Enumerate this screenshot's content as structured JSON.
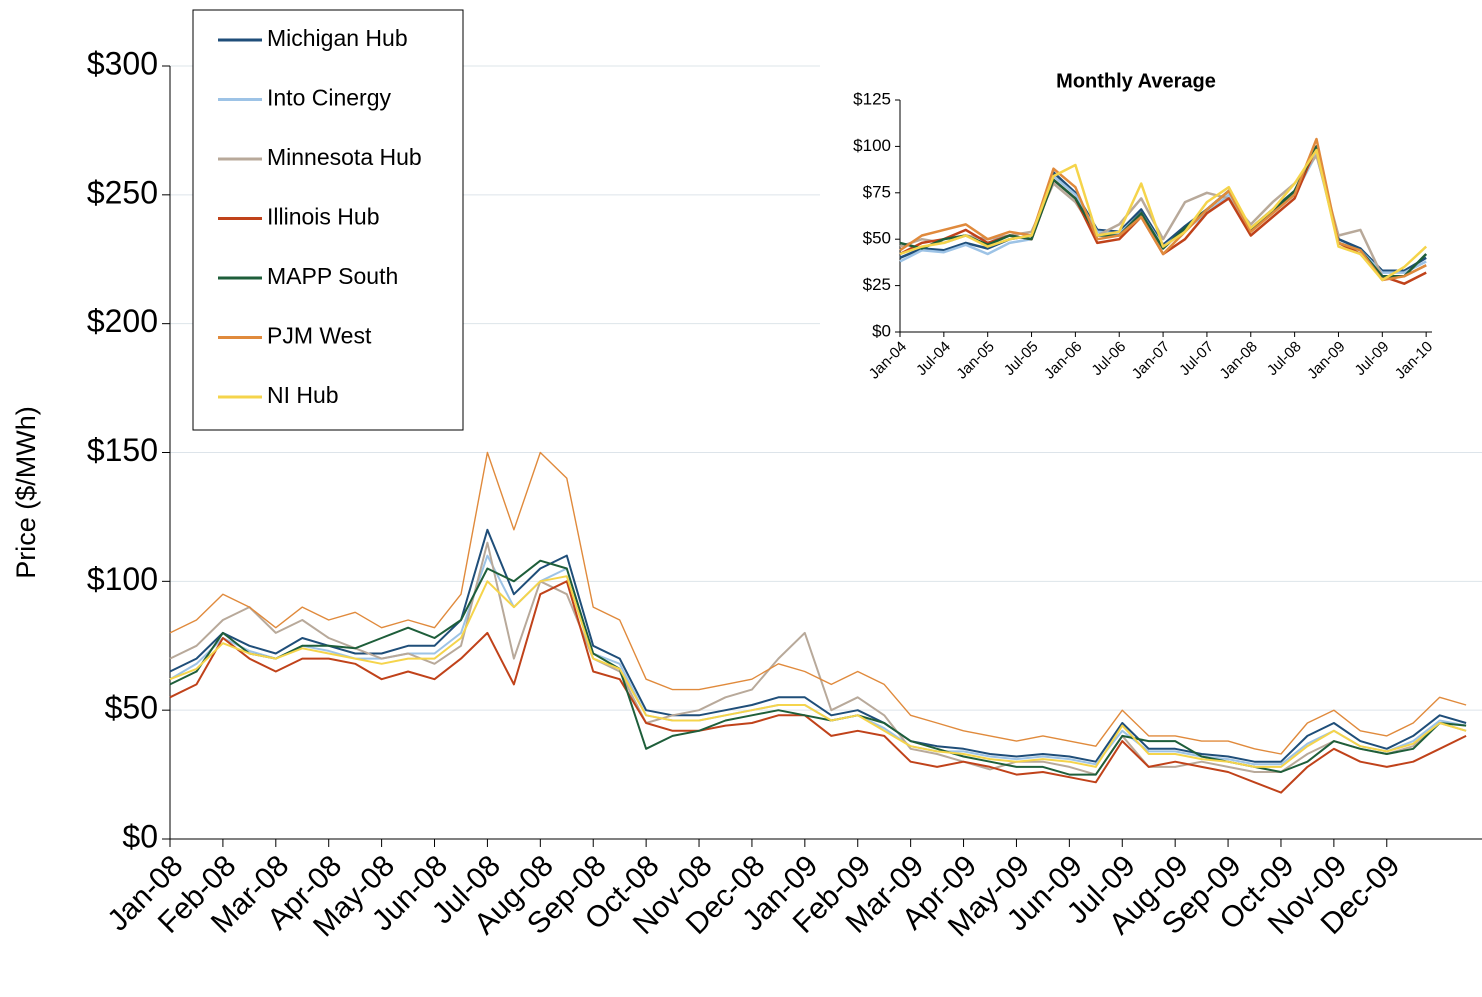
{
  "chart_data": [
    {
      "type": "line",
      "ylabel": "Price ($/MWh)",
      "legend": "upper-left",
      "grid": true,
      "xlim": [
        0,
        24.8
      ],
      "ylim": [
        0,
        300
      ],
      "xticks": [
        {
          "value": 0,
          "label": "Jan-08"
        },
        {
          "value": 1,
          "label": "Feb-08"
        },
        {
          "value": 2,
          "label": "Mar-08"
        },
        {
          "value": 3,
          "label": "Apr-08"
        },
        {
          "value": 4,
          "label": "May-08"
        },
        {
          "value": 5,
          "label": "Jun-08"
        },
        {
          "value": 6,
          "label": "Jul-08"
        },
        {
          "value": 7,
          "label": "Aug-08"
        },
        {
          "value": 8,
          "label": "Sep-08"
        },
        {
          "value": 9,
          "label": "Oct-08"
        },
        {
          "value": 10,
          "label": "Nov-08"
        },
        {
          "value": 11,
          "label": "Dec-08"
        },
        {
          "value": 12,
          "label": "Jan-09"
        },
        {
          "value": 13,
          "label": "Feb-09"
        },
        {
          "value": 14,
          "label": "Mar-09"
        },
        {
          "value": 15,
          "label": "Apr-09"
        },
        {
          "value": 16,
          "label": "May-09"
        },
        {
          "value": 17,
          "label": "Jun-09"
        },
        {
          "value": 18,
          "label": "Jul-09"
        },
        {
          "value": 19,
          "label": "Aug-09"
        },
        {
          "value": 20,
          "label": "Sep-09"
        },
        {
          "value": 21,
          "label": "Oct-09"
        },
        {
          "value": 22,
          "label": "Nov-09"
        },
        {
          "value": 23,
          "label": "Dec-09"
        }
      ],
      "yticks": [
        {
          "value": 0,
          "label": "$0"
        },
        {
          "value": 50,
          "label": "$50"
        },
        {
          "value": 100,
          "label": "$100"
        },
        {
          "value": 150,
          "label": "$150"
        },
        {
          "value": 200,
          "label": "$200"
        },
        {
          "value": 250,
          "label": "$250"
        },
        {
          "value": 300,
          "label": "$300"
        }
      ],
      "x": [
        0,
        0.5,
        1,
        1.5,
        2,
        2.5,
        3,
        3.5,
        4,
        4.5,
        5,
        5.5,
        6,
        6.5,
        7,
        7.5,
        8,
        8.5,
        9,
        9.5,
        10,
        10.5,
        11,
        11.5,
        12,
        12.5,
        13,
        13.5,
        14,
        14.5,
        15,
        15.5,
        16,
        16.5,
        17,
        17.5,
        18,
        18.5,
        19,
        19.5,
        20,
        20.5,
        21,
        21.5,
        22,
        22.5,
        23,
        23.5,
        24,
        24.5
      ],
      "series": [
        {
          "name": "Michigan Hub",
          "color": "#1f4e79",
          "values": [
            65,
            70,
            80,
            75,
            72,
            78,
            75,
            72,
            72,
            75,
            75,
            85,
            120,
            95,
            105,
            110,
            75,
            70,
            50,
            48,
            48,
            50,
            52,
            55,
            55,
            48,
            50,
            45,
            38,
            36,
            35,
            33,
            32,
            33,
            32,
            30,
            45,
            35,
            35,
            33,
            32,
            30,
            30,
            40,
            45,
            38,
            35,
            40,
            48,
            45
          ]
        },
        {
          "name": "Into Cinergy",
          "color": "#9dc3e6",
          "values": [
            62,
            68,
            78,
            73,
            70,
            75,
            73,
            70,
            70,
            72,
            72,
            80,
            110,
            90,
            100,
            105,
            72,
            68,
            48,
            46,
            46,
            48,
            50,
            52,
            52,
            46,
            48,
            43,
            36,
            34,
            34,
            32,
            31,
            32,
            31,
            29,
            42,
            34,
            34,
            32,
            31,
            29,
            29,
            37,
            42,
            36,
            34,
            38,
            46,
            44
          ]
        },
        {
          "name": "Minnesota Hub",
          "color": "#b8a99a",
          "values": [
            70,
            75,
            85,
            90,
            80,
            85,
            78,
            74,
            70,
            72,
            68,
            75,
            115,
            70,
            100,
            95,
            70,
            65,
            45,
            48,
            50,
            55,
            58,
            70,
            80,
            50,
            55,
            48,
            35,
            33,
            30,
            27,
            30,
            30,
            28,
            25,
            40,
            28,
            28,
            30,
            28,
            26,
            26,
            33,
            38,
            35,
            33,
            36,
            45,
            42
          ]
        },
        {
          "name": "Illinois Hub",
          "color": "#c0421a",
          "values": [
            55,
            60,
            78,
            70,
            65,
            70,
            70,
            68,
            62,
            65,
            62,
            70,
            80,
            60,
            95,
            100,
            65,
            62,
            45,
            42,
            42,
            44,
            45,
            48,
            48,
            40,
            42,
            40,
            30,
            28,
            30,
            28,
            25,
            26,
            24,
            22,
            38,
            28,
            30,
            28,
            26,
            22,
            18,
            28,
            35,
            30,
            28,
            30,
            35,
            40
          ]
        },
        {
          "name": "MAPP South",
          "color": "#1e5e3a",
          "values": [
            60,
            65,
            80,
            72,
            70,
            75,
            75,
            74,
            78,
            82,
            78,
            85,
            105,
            100,
            108,
            105,
            72,
            66,
            35,
            40,
            42,
            46,
            48,
            50,
            48,
            46,
            48,
            45,
            38,
            35,
            32,
            30,
            28,
            28,
            25,
            25,
            40,
            38,
            38,
            32,
            30,
            28,
            26,
            30,
            38,
            35,
            33,
            35,
            45,
            44
          ]
        },
        {
          "name": "PJM West",
          "color": "#e08a3c",
          "values": [
            80,
            85,
            95,
            90,
            82,
            90,
            85,
            88,
            82,
            85,
            82,
            95,
            150,
            120,
            150,
            140,
            90,
            85,
            62,
            58,
            58,
            60,
            62,
            68,
            65,
            60,
            65,
            60,
            48,
            45,
            42,
            40,
            38,
            40,
            38,
            36,
            50,
            40,
            40,
            38,
            38,
            35,
            33,
            45,
            50,
            42,
            40,
            45,
            55,
            52
          ]
        },
        {
          "name": "NI Hub",
          "color": "#f5d44b",
          "values": [
            62,
            66,
            76,
            72,
            70,
            74,
            72,
            70,
            68,
            70,
            70,
            78,
            100,
            90,
            100,
            102,
            70,
            66,
            48,
            46,
            46,
            48,
            50,
            52,
            52,
            46,
            48,
            42,
            36,
            34,
            33,
            31,
            30,
            31,
            30,
            28,
            44,
            33,
            33,
            31,
            30,
            28,
            28,
            36,
            42,
            36,
            34,
            37,
            45,
            42
          ]
        }
      ]
    },
    {
      "type": "line",
      "title": "Monthly Average",
      "grid": false,
      "xlim": [
        0,
        72.8
      ],
      "ylim": [
        0,
        125
      ],
      "xticks": [
        {
          "value": 0,
          "label": "Jan-04"
        },
        {
          "value": 6,
          "label": "Jul-04"
        },
        {
          "value": 12,
          "label": "Jan-05"
        },
        {
          "value": 18,
          "label": "Jul-05"
        },
        {
          "value": 24,
          "label": "Jan-06"
        },
        {
          "value": 30,
          "label": "Jul-06"
        },
        {
          "value": 36,
          "label": "Jan-07"
        },
        {
          "value": 42,
          "label": "Jul-07"
        },
        {
          "value": 48,
          "label": "Jan-08"
        },
        {
          "value": 54,
          "label": "Jul-08"
        },
        {
          "value": 60,
          "label": "Jan-09"
        },
        {
          "value": 66,
          "label": "Jul-09"
        },
        {
          "value": 72,
          "label": "Jan-10"
        }
      ],
      "yticks": [
        {
          "value": 0,
          "label": "$0"
        },
        {
          "value": 25,
          "label": "$25"
        },
        {
          "value": 50,
          "label": "$50"
        },
        {
          "value": 75,
          "label": "$75"
        },
        {
          "value": 100,
          "label": "$100"
        },
        {
          "value": 125,
          "label": "$125"
        }
      ],
      "x": [
        0,
        3,
        6,
        9,
        12,
        15,
        18,
        21,
        24,
        27,
        30,
        33,
        36,
        39,
        42,
        45,
        48,
        51,
        54,
        57,
        60,
        63,
        66,
        69,
        72
      ],
      "series": [
        {
          "name": "Michigan Hub",
          "color": "#1f4e79",
          "values": [
            40,
            45,
            44,
            48,
            45,
            50,
            52,
            86,
            75,
            55,
            54,
            66,
            47,
            57,
            66,
            76,
            56,
            66,
            76,
            98,
            50,
            45,
            33,
            33,
            40
          ]
        },
        {
          "name": "Into Cinergy",
          "color": "#9dc3e6",
          "values": [
            38,
            44,
            43,
            47,
            42,
            48,
            50,
            84,
            74,
            54,
            53,
            64,
            46,
            55,
            64,
            74,
            55,
            64,
            74,
            96,
            48,
            44,
            32,
            32,
            38
          ]
        },
        {
          "name": "Minnesota Hub",
          "color": "#b8a99a",
          "values": [
            46,
            50,
            48,
            52,
            50,
            52,
            54,
            80,
            70,
            52,
            58,
            72,
            50,
            70,
            75,
            72,
            58,
            70,
            80,
            95,
            52,
            55,
            30,
            30,
            36
          ]
        },
        {
          "name": "Illinois Hub",
          "color": "#c0421a",
          "values": [
            42,
            48,
            50,
            55,
            48,
            52,
            50,
            82,
            72,
            48,
            50,
            62,
            42,
            50,
            64,
            72,
            52,
            62,
            72,
            100,
            48,
            42,
            30,
            26,
            32
          ]
        },
        {
          "name": "MAPP South",
          "color": "#1e5e3a",
          "values": [
            48,
            45,
            50,
            52,
            47,
            52,
            50,
            82,
            72,
            52,
            52,
            64,
            45,
            56,
            66,
            76,
            55,
            65,
            76,
            100,
            48,
            44,
            30,
            30,
            42
          ]
        },
        {
          "name": "PJM West",
          "color": "#e08a3c",
          "values": [
            44,
            52,
            55,
            58,
            50,
            54,
            52,
            88,
            78,
            50,
            52,
            62,
            42,
            54,
            66,
            76,
            54,
            64,
            74,
            104,
            48,
            44,
            28,
            30,
            36
          ]
        },
        {
          "name": "NI Hub",
          "color": "#f5d44b",
          "values": [
            42,
            46,
            48,
            52,
            46,
            50,
            52,
            84,
            90,
            52,
            54,
            80,
            46,
            54,
            70,
            78,
            56,
            66,
            80,
            98,
            46,
            42,
            28,
            35,
            46
          ]
        }
      ]
    }
  ]
}
